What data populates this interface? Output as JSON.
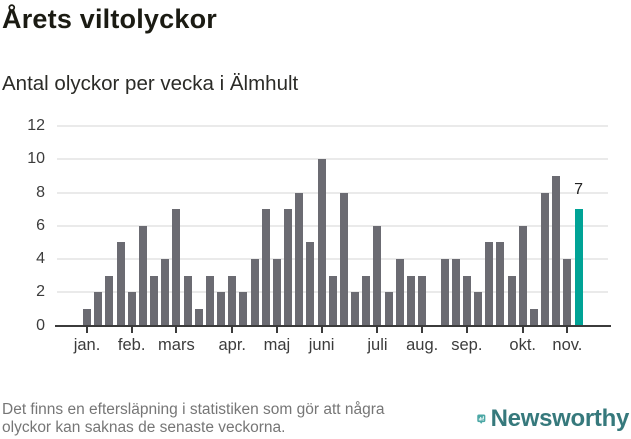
{
  "header": {
    "title": "Årets viltolyckor",
    "subtitle": "Antal olyckor per vecka i Älmhult"
  },
  "chart_data": {
    "type": "bar",
    "title": "Årets viltolyckor",
    "subtitle": "Antal olyckor per vecka i Älmhult",
    "x_unit": "week_number",
    "x": [
      1,
      2,
      3,
      4,
      5,
      6,
      7,
      8,
      9,
      10,
      11,
      12,
      13,
      14,
      15,
      16,
      17,
      18,
      19,
      20,
      21,
      22,
      23,
      24,
      25,
      26,
      27,
      28,
      29,
      30,
      31,
      32,
      33,
      34,
      35,
      36,
      37,
      38,
      39,
      40,
      41,
      42,
      43,
      44,
      45
    ],
    "values": [
      1,
      2,
      3,
      5,
      2,
      6,
      3,
      4,
      7,
      3,
      1,
      3,
      2,
      3,
      2,
      4,
      7,
      4,
      7,
      8,
      5,
      10,
      3,
      8,
      2,
      3,
      6,
      2,
      4,
      3,
      3,
      0,
      4,
      4,
      3,
      2,
      5,
      5,
      3,
      6,
      1,
      8,
      9,
      4,
      7
    ],
    "highlight": {
      "week": 45,
      "value": 7,
      "label": "7",
      "color": "#00a396"
    },
    "bar_color": "#6b6b72",
    "ylim": [
      0,
      12
    ],
    "yticks": [
      0,
      2,
      4,
      6,
      8,
      10,
      12
    ],
    "month_ticks": [
      {
        "week": 1,
        "label": "jan."
      },
      {
        "week": 5,
        "label": "feb."
      },
      {
        "week": 9,
        "label": "mars"
      },
      {
        "week": 14,
        "label": "apr."
      },
      {
        "week": 18,
        "label": "maj"
      },
      {
        "week": 22,
        "label": "juni"
      },
      {
        "week": 27,
        "label": "juli"
      },
      {
        "week": 31,
        "label": "aug."
      },
      {
        "week": 35,
        "label": "sep."
      },
      {
        "week": 40,
        "label": "okt."
      },
      {
        "week": 44,
        "label": "nov."
      }
    ],
    "grid": true,
    "legend": "none"
  },
  "footer": {
    "line1": "Det finns en eftersläpning i statistiken som gör att några",
    "line2": "olyckor kan saknas de senaste veckorna."
  },
  "brand": {
    "name": "Newsworthy",
    "icon": "newsworthy-bar-chart-logo",
    "icon_color": "#4ba7a5",
    "text_color": "#36797c"
  }
}
